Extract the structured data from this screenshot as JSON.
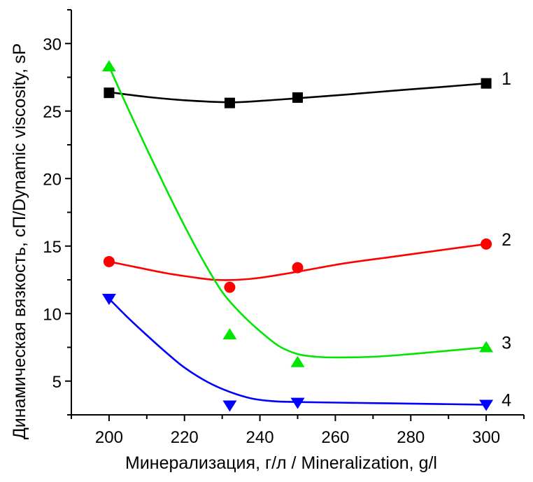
{
  "chart_data": {
    "type": "scatter",
    "title": "",
    "xlabel": "Минерализация, г/л / Mineralization, g/l",
    "ylabel": "Динамическая вязкость, сП/Dynamic viscosity, sP",
    "xlim": [
      190,
      310
    ],
    "ylim": [
      2.5,
      32.5
    ],
    "x_ticks": [
      200,
      220,
      240,
      260,
      280,
      300
    ],
    "x_minor_ticks": [
      190,
      210,
      230,
      250,
      270,
      290,
      310
    ],
    "y_ticks": [
      5,
      10,
      15,
      20,
      25,
      30
    ],
    "y_minor_ticks": [
      2.5,
      7.5,
      12.5,
      17.5,
      22.5,
      27.5,
      32.5
    ],
    "grid": false,
    "legend": "inline-right",
    "series": [
      {
        "name": "1",
        "label": "1",
        "color": "#000000",
        "marker": "square",
        "x": [
          200,
          232,
          250,
          300
        ],
        "y": [
          26.35,
          25.6,
          26.0,
          27.05
        ],
        "fit_x": [
          200,
          210,
          220,
          232,
          240,
          250,
          262,
          275,
          288,
          300
        ],
        "fit_y": [
          26.4,
          26.05,
          25.8,
          25.65,
          25.75,
          25.95,
          26.2,
          26.5,
          26.78,
          27.05
        ]
      },
      {
        "name": "2",
        "label": "2",
        "color": "#ff0000",
        "marker": "circle",
        "x": [
          200,
          232,
          250,
          300
        ],
        "y": [
          13.85,
          11.95,
          13.4,
          15.15
        ],
        "fit_x": [
          200,
          207,
          215,
          222,
          228,
          234,
          240,
          250,
          262,
          275,
          288,
          300
        ],
        "fit_y": [
          13.85,
          13.45,
          13.0,
          12.7,
          12.5,
          12.5,
          12.65,
          13.1,
          13.7,
          14.2,
          14.7,
          15.15
        ]
      },
      {
        "name": "3",
        "label": "3",
        "color": "#00e600",
        "marker": "triangle-up",
        "x": [
          200,
          232,
          250,
          300
        ],
        "y": [
          28.3,
          8.45,
          6.4,
          7.5
        ],
        "fit_x": [
          200,
          205,
          210,
          215,
          220,
          225,
          230,
          235,
          240,
          245,
          250,
          255,
          260,
          270,
          280,
          290,
          300
        ],
        "fit_y": [
          28.3,
          25.2,
          22.2,
          19.3,
          16.5,
          13.9,
          11.6,
          10.0,
          8.7,
          7.6,
          7.0,
          6.8,
          6.75,
          6.8,
          7.0,
          7.25,
          7.5
        ]
      },
      {
        "name": "4",
        "label": "4",
        "color": "#0000ff",
        "marker": "triangle-down",
        "x": [
          200,
          232,
          250,
          300
        ],
        "y": [
          11.1,
          3.2,
          3.4,
          3.25
        ],
        "fit_x": [
          200,
          205,
          210,
          215,
          220,
          226,
          232,
          238,
          244,
          250,
          262,
          275,
          288,
          300
        ],
        "fit_y": [
          11.1,
          9.7,
          8.4,
          7.15,
          6.0,
          4.95,
          4.2,
          3.7,
          3.5,
          3.45,
          3.4,
          3.35,
          3.3,
          3.25
        ]
      }
    ]
  }
}
